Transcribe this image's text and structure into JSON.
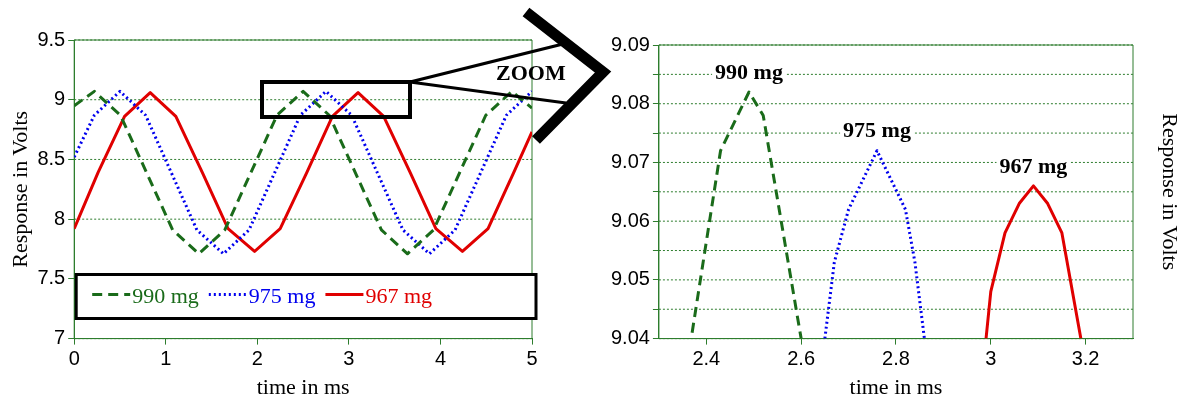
{
  "chart_data": [
    {
      "type": "line",
      "xlabel": "time in ms",
      "ylabel": "Response in Volts",
      "xlim": [
        0,
        5
      ],
      "xticks": [
        0,
        1,
        2,
        3,
        4,
        5
      ],
      "ylim": [
        7,
        9.5
      ],
      "yticks": [
        7,
        7.5,
        8,
        8.5,
        9,
        9.5
      ],
      "grid": "y",
      "legend": "bottom",
      "annotations": [
        "ZOOM"
      ],
      "series": [
        {
          "name": "990 mg",
          "color": "#1a6b1a",
          "line_style": "dashed",
          "x": [
            0,
            0.22,
            0.505,
            0.79,
            1.075,
            1.36,
            1.645,
            1.93,
            2.215,
            2.5,
            2.785,
            3.07,
            3.355,
            3.64,
            3.925,
            4.21,
            4.495,
            4.78,
            5
          ],
          "values": [
            8.95,
            9.07,
            8.87,
            8.39,
            7.91,
            7.71,
            7.91,
            8.39,
            8.87,
            9.07,
            8.87,
            8.39,
            7.91,
            7.71,
            7.91,
            8.39,
            8.87,
            9.07,
            8.93
          ]
        },
        {
          "name": "975 mg",
          "color": "#0000ee",
          "line_style": "dotted",
          "x": [
            0,
            0.22,
            0.5,
            0.78,
            1.06,
            1.34,
            1.63,
            1.91,
            2.19,
            2.47,
            2.75,
            3.03,
            3.31,
            3.59,
            3.88,
            4.16,
            4.44,
            4.72,
            5
          ],
          "values": [
            8.52,
            8.87,
            9.07,
            8.87,
            8.39,
            7.91,
            7.71,
            7.91,
            8.39,
            8.87,
            9.07,
            8.87,
            8.39,
            7.91,
            7.71,
            7.91,
            8.39,
            8.87,
            9.07
          ]
        },
        {
          "name": "967 mg",
          "color": "#e00000",
          "line_style": "solid",
          "x": [
            0,
            0.26,
            0.55,
            0.83,
            1.11,
            1.4,
            1.68,
            1.97,
            2.25,
            2.54,
            2.82,
            3.1,
            3.38,
            3.67,
            3.95,
            4.24,
            4.52,
            4.8,
            5
          ],
          "values": [
            7.92,
            8.39,
            8.86,
            9.06,
            8.86,
            8.39,
            7.92,
            7.73,
            7.92,
            8.39,
            8.86,
            9.06,
            8.86,
            8.39,
            7.92,
            7.73,
            7.92,
            8.39,
            8.73
          ]
        }
      ]
    },
    {
      "type": "line",
      "xlabel": "time in ms",
      "ylabel": "Response in Volts",
      "xlim": [
        2.3,
        3.3
      ],
      "xticks": [
        2.4,
        2.6,
        2.8,
        3,
        3.2
      ],
      "ylim": [
        9.04,
        9.09
      ],
      "yticks": [
        9.04,
        {
          "value": 9.045,
          "label": null
        },
        9.05,
        {
          "value": 9.055,
          "label": null
        },
        9.06,
        {
          "value": 9.065,
          "label": null
        },
        9.07,
        {
          "value": 9.075,
          "label": null
        },
        9.08,
        {
          "value": 9.085,
          "label": null
        },
        9.09
      ],
      "grid": "y",
      "annotations": [
        {
          "text": "990 mg",
          "x": 2.49,
          "y": 9.082
        },
        {
          "text": "975 mg",
          "x": 2.76,
          "y": 9.072
        },
        {
          "text": "967 mg",
          "x": 3.09,
          "y": 9.066
        }
      ],
      "series": [
        {
          "color": "#1a6b1a",
          "line_style": "dashed",
          "x": [
            2.37,
            2.43,
            2.49,
            2.52,
            2.6
          ],
          "values": [
            9.041,
            9.072,
            9.082,
            9.078,
            9.04
          ]
        },
        {
          "color": "#0000ee",
          "line_style": "dotted",
          "x": [
            2.65,
            2.67,
            2.7,
            2.76,
            2.82,
            2.84,
            2.86
          ],
          "values": [
            9.04,
            9.053,
            9.062,
            9.072,
            9.062,
            9.053,
            9.04
          ]
        },
        {
          "color": "#e00000",
          "line_style": "solid",
          "x": [
            2.99,
            3,
            3.03,
            3.06,
            3.09,
            3.12,
            3.15,
            3.19
          ],
          "values": [
            9.04,
            9.048,
            9.058,
            9.063,
            9.066,
            9.063,
            9.058,
            9.04
          ]
        }
      ]
    }
  ]
}
